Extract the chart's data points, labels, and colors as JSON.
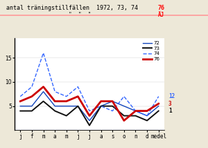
{
  "title_black": "antal träningstillfällen  1972, 73, 74  ",
  "title_red": "76",
  "subtitle_black": "\"  \"  \"",
  "subtitle_red": "ÄJ",
  "xlabel_months": [
    "j",
    "f",
    "m",
    "a",
    "m",
    "j",
    "j",
    "a",
    "s",
    "o",
    "n",
    "d",
    "medel"
  ],
  "ylim": [
    0,
    19
  ],
  "series": {
    "72": {
      "color": "#1144bb",
      "linestyle": "solid",
      "linewidth": 1.0,
      "values": [
        5,
        5,
        8,
        5,
        5,
        5,
        2,
        5,
        6,
        5,
        4,
        3,
        5
      ]
    },
    "73": {
      "color": "#111111",
      "linestyle": "solid",
      "linewidth": 1.4,
      "values": [
        4,
        4,
        6,
        4,
        3,
        5,
        1,
        5,
        5,
        3,
        3,
        2,
        4
      ]
    },
    "74": {
      "color": "#3366ff",
      "linestyle": "dashed",
      "linewidth": 1.0,
      "values": [
        7,
        9,
        16,
        8,
        7,
        9,
        4,
        5,
        4,
        7,
        4,
        3,
        7
      ]
    },
    "76": {
      "color": "#cc0000",
      "linestyle": "solid",
      "linewidth": 2.0,
      "values": [
        6,
        7,
        9,
        6,
        6,
        7,
        3,
        6,
        6,
        2,
        4,
        4,
        5.5
      ]
    }
  },
  "bg_color": "#ede8d8",
  "plot_bg": "#ffffff",
  "pink_line_color": "#ff9999",
  "baseline_color": "#2244aa",
  "legend_items": [
    {
      "label": "72",
      "color": "#1144bb",
      "linestyle": "solid",
      "linewidth": 1.0
    },
    {
      "label": "73",
      "color": "#111111",
      "linestyle": "solid",
      "linewidth": 1.4
    },
    {
      "label": "74",
      "color": "#3366ff",
      "linestyle": "dashed",
      "linewidth": 1.0
    },
    {
      "label": "76",
      "color": "#cc0000",
      "linestyle": "solid",
      "linewidth": 2.0
    }
  ],
  "right_labels": [
    {
      "text": "12",
      "color": "#3366ff",
      "y_data": 7
    },
    {
      "text": "3",
      "color": "#cc0000",
      "y_data": 5.5
    },
    {
      "text": "1",
      "color": "#111111",
      "y_data": 4
    }
  ],
  "ytick_vals": [
    5,
    10,
    15
  ],
  "ytick_labels": [
    "5",
    "10",
    "15"
  ]
}
